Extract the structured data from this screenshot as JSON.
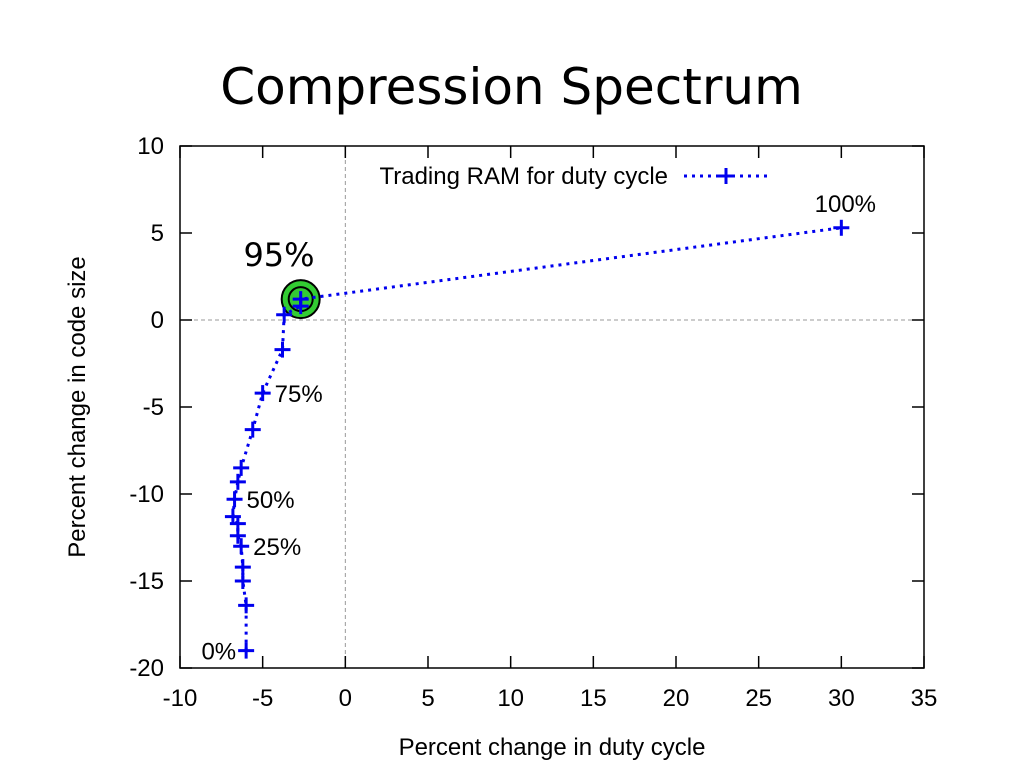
{
  "slide": {
    "title": "Compression Spectrum",
    "callout_label": "95%",
    "callout_color": "#33cc33"
  },
  "chart_data": {
    "type": "line",
    "title": "",
    "xlabel": "Percent change in duty cycle",
    "ylabel": "Percent change in code size",
    "xlim": [
      -10,
      35
    ],
    "ylim": [
      -20,
      10
    ],
    "xticks": [
      -10,
      -5,
      0,
      5,
      10,
      15,
      20,
      25,
      30,
      35
    ],
    "yticks": [
      -20,
      -15,
      -10,
      -5,
      0,
      5,
      10
    ],
    "grid": false,
    "zero_lines": true,
    "legend_position": "top-center",
    "series": [
      {
        "name": "Trading RAM for duty cycle",
        "color": "#0000ee",
        "line_style": "dotted",
        "marker": "plus",
        "points": [
          {
            "x": -6.0,
            "y": -19.0
          },
          {
            "x": -6.0,
            "y": -16.4
          },
          {
            "x": -6.2,
            "y": -15.0
          },
          {
            "x": -6.2,
            "y": -14.2
          },
          {
            "x": -6.3,
            "y": -13.0
          },
          {
            "x": -6.5,
            "y": -12.4
          },
          {
            "x": -6.5,
            "y": -11.7
          },
          {
            "x": -6.8,
            "y": -11.3
          },
          {
            "x": -6.7,
            "y": -10.3
          },
          {
            "x": -6.5,
            "y": -9.3
          },
          {
            "x": -6.3,
            "y": -8.5
          },
          {
            "x": -5.6,
            "y": -6.3
          },
          {
            "x": -5.0,
            "y": -4.2
          },
          {
            "x": -3.8,
            "y": -1.7
          },
          {
            "x": -3.7,
            "y": 0.3
          },
          {
            "x": -2.7,
            "y": 0.8
          },
          {
            "x": -2.7,
            "y": 1.2
          },
          {
            "x": 30.0,
            "y": 5.3
          }
        ]
      }
    ],
    "annotations": [
      {
        "text": "0%",
        "x": -6.0,
        "y": -19.0,
        "side": "left"
      },
      {
        "text": "25%",
        "x": -6.3,
        "y": -13.0,
        "side": "right"
      },
      {
        "text": "50%",
        "x": -6.7,
        "y": -10.3,
        "side": "right"
      },
      {
        "text": "75%",
        "x": -5.0,
        "y": -4.2,
        "side": "right"
      },
      {
        "text": "100%",
        "x": 30.0,
        "y": 5.3,
        "side": "above"
      }
    ],
    "highlight": {
      "x": -2.7,
      "y": 1.2
    }
  }
}
